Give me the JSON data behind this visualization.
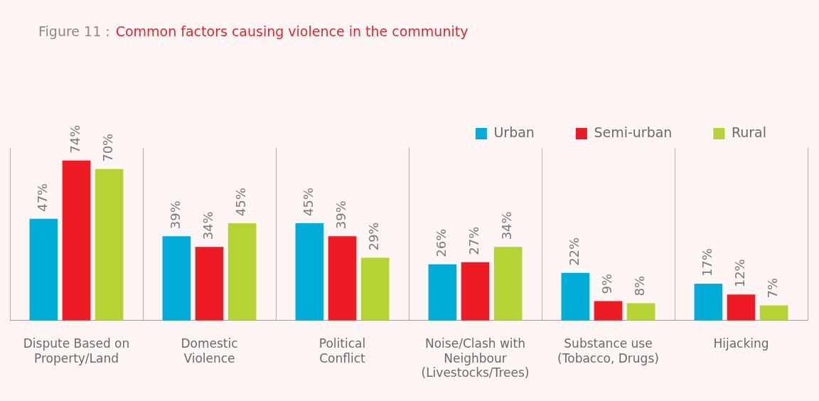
{
  "chart_data": {
    "type": "bar",
    "title": "Figure 11 :",
    "subtitle": "Common factors causing violence in the community",
    "categories": [
      "Dispute Based on Property/Land",
      "Domestic Violence",
      "Political Conflict",
      "Noise/Clash with Neighbour (Livestocks/Trees)",
      "Substance use (Tobacco, Drugs)",
      "Hijacking"
    ],
    "series": [
      {
        "name": "Urban",
        "color": "#00acd8",
        "values": [
          47,
          39,
          45,
          26,
          22,
          17
        ],
        "value_labels": [
          "47%",
          "39%",
          "45%",
          "26%",
          "22%",
          "17%"
        ]
      },
      {
        "name": "Semi-urban",
        "color": "#ed1c24",
        "values": [
          74,
          34,
          39,
          27,
          9,
          12
        ],
        "value_labels": [
          "74%",
          "34%",
          "39%",
          "27%",
          "9%",
          "12%"
        ]
      },
      {
        "name": "Rural",
        "color": "#b5d334",
        "values": [
          70,
          45,
          29,
          34,
          8,
          7
        ],
        "value_labels": [
          "70%",
          "45%",
          "29%",
          "34%",
          "8%",
          "7%"
        ]
      }
    ],
    "grid": "x",
    "legend": "top right"
  }
}
